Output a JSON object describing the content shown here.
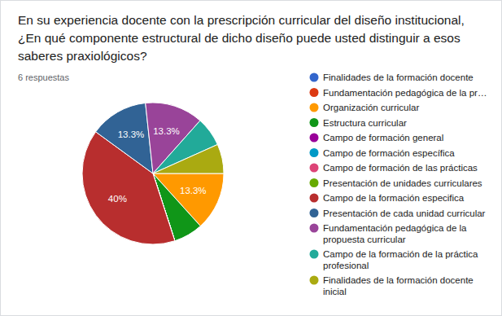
{
  "chart_data": {
    "type": "pie",
    "title": "En su experiencia docente con la prescripción curricular del diseño institucional, ¿En qué componente estructural de dicho diseño puede usted distinguir a esos saberes praxiológicos?",
    "subtitle": "6 respuestas",
    "categories": [
      "Finalidades de la formación docente",
      "Fundamentación pedagógica de la pr…",
      "Organización curricular",
      "Estructura curricular",
      "Campo de formación general",
      "Campo de formación específica",
      "Campo de formación de las prácticas",
      "Presentación de unidades curriculares",
      "Campo de la formación especifica",
      "Presentación de cada unidad curricular",
      "Fundamentación pedagógica de la propuesta curricular",
      "Campo de la formación de la práctica profesional",
      "Finalidades de la formación docente inicial"
    ],
    "values": [
      0,
      0,
      13.3,
      6.7,
      0,
      0,
      0,
      0,
      40,
      13.3,
      13.3,
      6.7,
      6.7
    ],
    "value_labels": [
      null,
      null,
      "13.3%",
      null,
      null,
      null,
      null,
      null,
      "40%",
      "13.3%",
      "13.3%",
      null,
      null
    ],
    "colors": [
      "#3366cc",
      "#dc3912",
      "#ff9900",
      "#109618",
      "#990099",
      "#0099c6",
      "#dd4477",
      "#66aa00",
      "#b82e2e",
      "#316395",
      "#994499",
      "#22aa99",
      "#aaaa11"
    ],
    "data_labels": true,
    "legend": "right"
  }
}
